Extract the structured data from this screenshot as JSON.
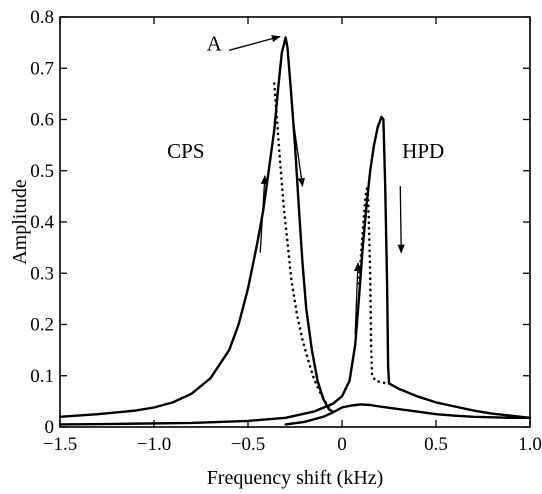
{
  "chart_data": {
    "type": "line",
    "title": "",
    "xlabel": "Frequency shift  (kHz)",
    "ylabel": "Amplitude",
    "xlim": [
      -1.5,
      1.0
    ],
    "ylim": [
      0,
      0.8
    ],
    "x_ticks": [
      -1.5,
      -1.0,
      -0.5,
      0,
      0.5,
      1.0
    ],
    "x_tick_labels": [
      "−1.5",
      "−1.0",
      "−0.5",
      "0",
      "0.5",
      "1.0"
    ],
    "y_ticks": [
      0,
      0.1,
      0.2,
      0.3,
      0.4,
      0.5,
      0.6,
      0.7,
      0.8
    ],
    "y_tick_labels": [
      "0",
      "0.1",
      "0.2",
      "0.3",
      "0.4",
      "0.5",
      "0.6",
      "0.7",
      "0.8"
    ],
    "grid": false,
    "legend": "none",
    "series": [
      {
        "style": "solid",
        "color": "#000000",
        "points": [
          [
            -1.5,
            0.02
          ],
          [
            -1.3,
            0.025
          ],
          [
            -1.1,
            0.032
          ],
          [
            -1.0,
            0.038
          ],
          [
            -0.9,
            0.048
          ],
          [
            -0.8,
            0.065
          ],
          [
            -0.7,
            0.095
          ],
          [
            -0.6,
            0.15
          ],
          [
            -0.55,
            0.2
          ],
          [
            -0.5,
            0.27
          ],
          [
            -0.45,
            0.36
          ],
          [
            -0.42,
            0.42
          ],
          [
            -0.39,
            0.5
          ],
          [
            -0.36,
            0.58
          ],
          [
            -0.34,
            0.66
          ],
          [
            -0.32,
            0.73
          ],
          [
            -0.3,
            0.76
          ],
          [
            -0.29,
            0.74
          ],
          [
            -0.27,
            0.65
          ],
          [
            -0.25,
            0.55
          ],
          [
            -0.23,
            0.43
          ],
          [
            -0.21,
            0.32
          ],
          [
            -0.19,
            0.23
          ],
          [
            -0.16,
            0.15
          ],
          [
            -0.13,
            0.09
          ],
          [
            -0.1,
            0.055
          ],
          [
            -0.07,
            0.035
          ],
          [
            -0.05,
            0.03
          ]
        ]
      },
      {
        "style": "dotted",
        "color": "#000000",
        "points": [
          [
            -0.36,
            0.67
          ],
          [
            -0.35,
            0.62
          ],
          [
            -0.33,
            0.52
          ],
          [
            -0.31,
            0.43
          ],
          [
            -0.29,
            0.36
          ],
          [
            -0.27,
            0.29
          ],
          [
            -0.24,
            0.22
          ],
          [
            -0.21,
            0.17
          ],
          [
            -0.18,
            0.13
          ],
          [
            -0.15,
            0.095
          ],
          [
            -0.12,
            0.07
          ],
          [
            -0.09,
            0.05
          ],
          [
            -0.07,
            0.038
          ]
        ]
      },
      {
        "style": "solid",
        "color": "#000000",
        "points": [
          [
            -1.5,
            0.005
          ],
          [
            -1.2,
            0.006
          ],
          [
            -0.8,
            0.008
          ],
          [
            -0.5,
            0.012
          ],
          [
            -0.3,
            0.018
          ],
          [
            -0.15,
            0.03
          ],
          [
            -0.05,
            0.045
          ],
          [
            0.0,
            0.06
          ],
          [
            0.04,
            0.09
          ],
          [
            0.07,
            0.16
          ],
          [
            0.09,
            0.25
          ],
          [
            0.11,
            0.35
          ],
          [
            0.13,
            0.43
          ],
          [
            0.15,
            0.5
          ],
          [
            0.17,
            0.55
          ],
          [
            0.19,
            0.585
          ],
          [
            0.21,
            0.605
          ],
          [
            0.22,
            0.6
          ],
          [
            0.23,
            0.47
          ],
          [
            0.24,
            0.28
          ],
          [
            0.245,
            0.12
          ],
          [
            0.25,
            0.085
          ],
          [
            0.3,
            0.075
          ],
          [
            0.4,
            0.06
          ],
          [
            0.5,
            0.048
          ],
          [
            0.6,
            0.04
          ],
          [
            0.7,
            0.032
          ],
          [
            0.8,
            0.026
          ],
          [
            0.9,
            0.022
          ],
          [
            1.0,
            0.018
          ]
        ]
      },
      {
        "style": "dotted",
        "color": "#000000",
        "points": [
          [
            0.09,
            0.28
          ],
          [
            0.11,
            0.38
          ],
          [
            0.125,
            0.45
          ],
          [
            0.135,
            0.47
          ],
          [
            0.14,
            0.44
          ],
          [
            0.15,
            0.3
          ],
          [
            0.155,
            0.16
          ],
          [
            0.16,
            0.1
          ],
          [
            0.18,
            0.09
          ],
          [
            0.21,
            0.087
          ],
          [
            0.24,
            0.085
          ]
        ]
      },
      {
        "style": "solid",
        "color": "#000000",
        "points": [
          [
            -0.3,
            0.005
          ],
          [
            -0.2,
            0.01
          ],
          [
            -0.1,
            0.02
          ],
          [
            -0.05,
            0.028
          ],
          [
            0.0,
            0.038
          ],
          [
            0.05,
            0.042
          ],
          [
            0.1,
            0.044
          ],
          [
            0.15,
            0.043
          ],
          [
            0.2,
            0.04
          ],
          [
            0.3,
            0.035
          ],
          [
            0.4,
            0.03
          ],
          [
            0.5,
            0.025
          ],
          [
            0.6,
            0.022
          ],
          [
            0.7,
            0.02
          ],
          [
            0.8,
            0.019
          ],
          [
            0.9,
            0.018
          ],
          [
            1.0,
            0.018
          ]
        ]
      }
    ],
    "annotations": [
      {
        "text": "A",
        "x": -0.72,
        "y": 0.735
      },
      {
        "text": "CPS",
        "x": -0.93,
        "y": 0.525
      },
      {
        "text": "HPD",
        "x": 0.32,
        "y": 0.525
      }
    ],
    "arrows": [
      {
        "name": "arrow-to-peak-a",
        "from": [
          -0.6,
          0.735
        ],
        "to": [
          -0.33,
          0.762
        ]
      },
      {
        "name": "arrow-cps-down",
        "from": [
          -0.26,
          0.6
        ],
        "to": [
          -0.21,
          0.47
        ]
      },
      {
        "name": "arrow-cps-up",
        "from": [
          -0.435,
          0.34
        ],
        "to": [
          -0.41,
          0.49
        ]
      },
      {
        "name": "arrow-hpd-down",
        "from": [
          0.31,
          0.47
        ],
        "to": [
          0.315,
          0.34
        ]
      },
      {
        "name": "arrow-hpd-up",
        "from": [
          0.07,
          0.18
        ],
        "to": [
          0.085,
          0.32
        ]
      }
    ]
  }
}
